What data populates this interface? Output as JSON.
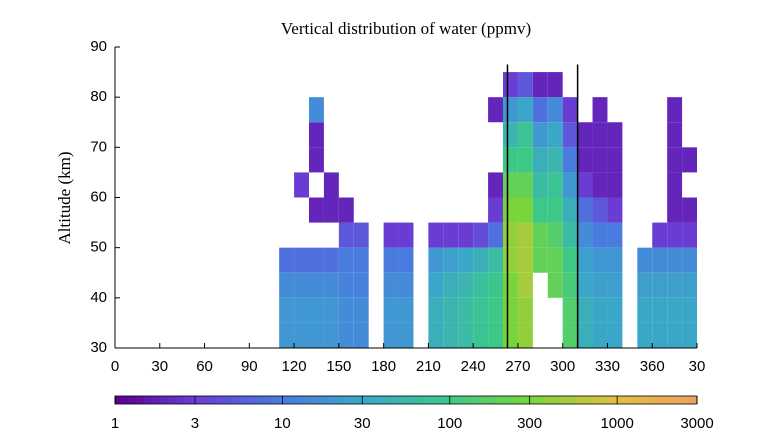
{
  "chart_data": {
    "type": "heatmap",
    "title": "Vertical distribution of water (ppmv)",
    "ylabel": "Altitude (km)",
    "xlim": [
      0,
      390
    ],
    "xticks": [
      0,
      30,
      60,
      90,
      120,
      150,
      180,
      210,
      240,
      270,
      300,
      330,
      360,
      {
        "value": 390,
        "label": "30"
      }
    ],
    "ylim": [
      30,
      90
    ],
    "yticks": [
      30,
      40,
      50,
      60,
      70,
      80,
      90
    ],
    "x": [
      115,
      125,
      135,
      145,
      155,
      165,
      175,
      185,
      195,
      205,
      215,
      225,
      235,
      245,
      255,
      265,
      275,
      285,
      295,
      305,
      315,
      325,
      335,
      345,
      355,
      365,
      375,
      385
    ],
    "y": [
      30,
      35,
      40,
      45,
      50,
      55,
      60,
      65,
      70,
      75,
      80
    ],
    "z": [
      [
        20,
        20,
        20,
        20,
        15,
        15,
        null,
        20,
        20,
        null,
        40,
        50,
        60,
        80,
        100,
        300,
        400,
        null,
        null,
        150,
        40,
        30,
        30,
        null,
        30,
        30,
        30,
        30
      ],
      [
        20,
        20,
        20,
        20,
        15,
        15,
        null,
        20,
        20,
        null,
        40,
        50,
        60,
        80,
        100,
        300,
        400,
        null,
        null,
        150,
        40,
        30,
        30,
        null,
        30,
        30,
        30,
        30
      ],
      [
        15,
        15,
        15,
        15,
        12,
        12,
        null,
        15,
        15,
        null,
        30,
        40,
        50,
        70,
        90,
        300,
        500,
        null,
        200,
        120,
        30,
        25,
        25,
        null,
        25,
        25,
        25,
        25
      ],
      [
        8,
        8,
        8,
        8,
        10,
        10,
        null,
        10,
        10,
        null,
        20,
        25,
        30,
        40,
        60,
        400,
        500,
        200,
        200,
        100,
        25,
        20,
        20,
        null,
        15,
        15,
        15,
        15
      ],
      [
        null,
        null,
        null,
        null,
        5,
        5,
        null,
        3,
        3,
        null,
        3,
        3,
        3,
        4,
        8,
        400,
        500,
        200,
        150,
        60,
        15,
        10,
        10,
        null,
        null,
        3,
        3,
        3
      ],
      [
        null,
        null,
        2,
        2,
        2,
        null,
        null,
        null,
        null,
        null,
        null,
        null,
        null,
        null,
        3,
        300,
        300,
        100,
        100,
        40,
        8,
        5,
        3,
        null,
        null,
        null,
        2,
        2
      ],
      [
        null,
        3,
        null,
        2,
        null,
        null,
        null,
        null,
        null,
        null,
        null,
        null,
        null,
        null,
        2,
        200,
        200,
        60,
        80,
        20,
        3,
        2,
        2,
        null,
        null,
        null,
        2,
        null
      ],
      [
        null,
        null,
        2,
        null,
        null,
        null,
        null,
        null,
        null,
        null,
        null,
        null,
        null,
        null,
        null,
        100,
        100,
        40,
        50,
        10,
        2,
        2,
        2,
        null,
        null,
        null,
        2,
        2
      ],
      [
        null,
        null,
        2,
        null,
        null,
        null,
        null,
        null,
        null,
        null,
        null,
        null,
        null,
        null,
        null,
        50,
        80,
        20,
        30,
        5,
        2,
        2,
        2,
        null,
        null,
        null,
        2,
        null
      ],
      [
        null,
        null,
        15,
        null,
        null,
        null,
        null,
        null,
        null,
        null,
        null,
        null,
        null,
        null,
        2,
        20,
        30,
        8,
        15,
        3,
        null,
        2,
        null,
        null,
        null,
        null,
        2,
        null
      ],
      [
        null,
        null,
        null,
        null,
        null,
        null,
        null,
        null,
        null,
        null,
        null,
        null,
        null,
        null,
        null,
        3,
        5,
        2,
        2,
        null,
        null,
        null,
        null,
        null,
        null,
        null,
        null,
        null
      ]
    ],
    "vlines": [
      263,
      310
    ],
    "clim": [
      1,
      3000
    ],
    "log_color": true,
    "colormap": [
      "#5a0090",
      "#6a3fd6",
      "#4a7be0",
      "#3aa8c8",
      "#3cc88a",
      "#7ad43a",
      "#e0c040",
      "#f0a060"
    ],
    "cbticks": [
      1,
      3,
      10,
      30,
      100,
      300,
      1000,
      3000
    ]
  }
}
